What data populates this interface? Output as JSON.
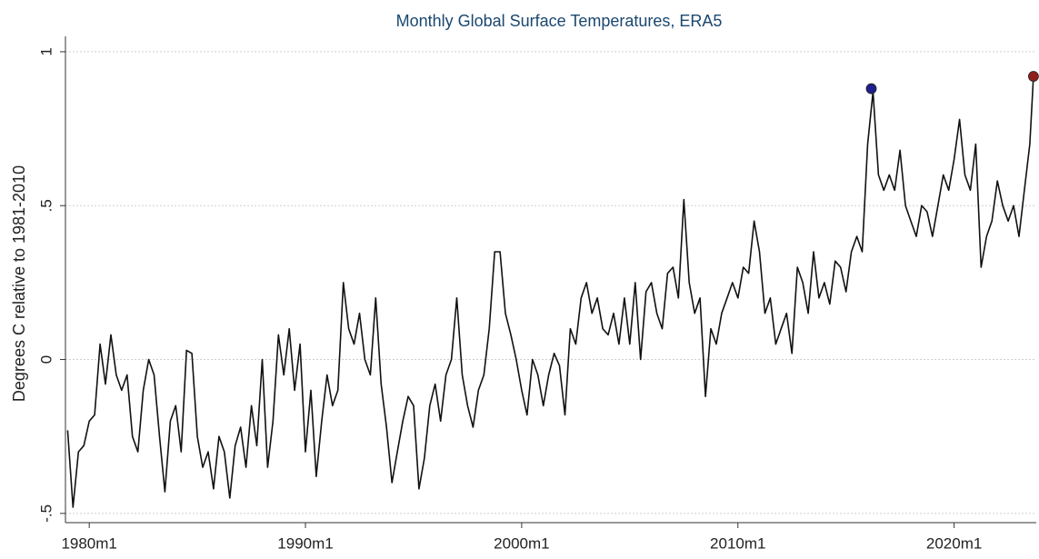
{
  "chart_data": {
    "type": "line",
    "title": "Monthly Global Surface Temperatures, ERA5",
    "y_label": "Degrees C relative to 1981-2010",
    "color": "#111111",
    "grid": true,
    "x": [
      1979,
      1979.25,
      1979.5,
      1979.75,
      1980,
      1980.25,
      1980.5,
      1980.75,
      1981,
      1981.25,
      1981.5,
      1981.75,
      1982,
      1982.25,
      1982.5,
      1982.75,
      1983,
      1983.25,
      1983.5,
      1983.75,
      1984,
      1984.25,
      1984.5,
      1984.75,
      1985,
      1985.25,
      1985.5,
      1985.75,
      1986,
      1986.25,
      1986.5,
      1986.75,
      1987,
      1987.25,
      1987.5,
      1987.75,
      1988,
      1988.25,
      1988.5,
      1988.75,
      1989,
      1989.25,
      1989.5,
      1989.75,
      1990,
      1990.25,
      1990.5,
      1990.75,
      1991,
      1991.25,
      1991.5,
      1991.75,
      1992,
      1992.25,
      1992.5,
      1992.75,
      1993,
      1993.25,
      1993.5,
      1993.75,
      1994,
      1994.25,
      1994.5,
      1994.75,
      1995,
      1995.25,
      1995.5,
      1995.75,
      1996,
      1996.25,
      1996.5,
      1996.75,
      1997,
      1997.25,
      1997.5,
      1997.75,
      1998,
      1998.25,
      1998.5,
      1998.75,
      1999,
      1999.25,
      1999.5,
      1999.75,
      2000,
      2000.25,
      2000.5,
      2000.75,
      2001,
      2001.25,
      2001.5,
      2001.75,
      2002,
      2002.25,
      2002.5,
      2002.75,
      2003,
      2003.25,
      2003.5,
      2003.75,
      2004,
      2004.25,
      2004.5,
      2004.75,
      2005,
      2005.25,
      2005.5,
      2005.75,
      2006,
      2006.25,
      2006.5,
      2006.75,
      2007,
      2007.25,
      2007.5,
      2007.75,
      2008,
      2008.25,
      2008.5,
      2008.75,
      2009,
      2009.25,
      2009.5,
      2009.75,
      2010,
      2010.25,
      2010.5,
      2010.75,
      2011,
      2011.25,
      2011.5,
      2011.75,
      2012,
      2012.25,
      2012.5,
      2012.75,
      2013,
      2013.25,
      2013.5,
      2013.75,
      2014,
      2014.25,
      2014.5,
      2014.75,
      2015,
      2015.25,
      2015.5,
      2015.75,
      2016,
      2016.25,
      2016.5,
      2016.75,
      2017,
      2017.25,
      2017.5,
      2017.75,
      2018,
      2018.25,
      2018.5,
      2018.75,
      2019,
      2019.25,
      2019.5,
      2019.75,
      2020,
      2020.25,
      2020.5,
      2020.75,
      2021,
      2021.25,
      2021.5,
      2021.75,
      2022,
      2022.25,
      2022.5,
      2022.75,
      2023,
      2023.25,
      2023.5,
      2023.67
    ],
    "values": [
      -0.23,
      -0.48,
      -0.3,
      -0.28,
      -0.2,
      -0.18,
      0.05,
      -0.08,
      0.08,
      -0.05,
      -0.1,
      -0.05,
      -0.25,
      -0.3,
      -0.1,
      0.0,
      -0.05,
      -0.25,
      -0.43,
      -0.2,
      -0.15,
      -0.3,
      0.03,
      0.02,
      -0.25,
      -0.35,
      -0.3,
      -0.42,
      -0.25,
      -0.3,
      -0.45,
      -0.28,
      -0.22,
      -0.35,
      -0.15,
      -0.28,
      0.0,
      -0.35,
      -0.2,
      0.08,
      -0.05,
      0.1,
      -0.1,
      0.05,
      -0.3,
      -0.1,
      -0.38,
      -0.2,
      -0.05,
      -0.15,
      -0.1,
      0.25,
      0.1,
      0.05,
      0.15,
      0.0,
      -0.05,
      0.2,
      -0.08,
      -0.22,
      -0.4,
      -0.3,
      -0.2,
      -0.12,
      -0.15,
      -0.42,
      -0.32,
      -0.15,
      -0.08,
      -0.2,
      -0.05,
      0.0,
      0.2,
      -0.05,
      -0.15,
      -0.22,
      -0.1,
      -0.05,
      0.1,
      0.35,
      0.35,
      0.15,
      0.08,
      0.0,
      -0.1,
      -0.18,
      0.0,
      -0.05,
      -0.15,
      -0.05,
      0.02,
      -0.02,
      -0.18,
      0.1,
      0.05,
      0.2,
      0.25,
      0.15,
      0.2,
      0.1,
      0.08,
      0.15,
      0.05,
      0.2,
      0.05,
      0.25,
      0.0,
      0.22,
      0.25,
      0.15,
      0.1,
      0.28,
      0.3,
      0.2,
      0.52,
      0.25,
      0.15,
      0.2,
      -0.12,
      0.1,
      0.05,
      0.15,
      0.2,
      0.25,
      0.2,
      0.3,
      0.28,
      0.45,
      0.35,
      0.15,
      0.2,
      0.05,
      0.1,
      0.15,
      0.02,
      0.3,
      0.25,
      0.15,
      0.35,
      0.2,
      0.25,
      0.18,
      0.32,
      0.3,
      0.22,
      0.35,
      0.4,
      0.35,
      0.7,
      0.87,
      0.6,
      0.55,
      0.6,
      0.55,
      0.68,
      0.5,
      0.45,
      0.4,
      0.5,
      0.48,
      0.4,
      0.5,
      0.6,
      0.55,
      0.65,
      0.78,
      0.6,
      0.55,
      0.7,
      0.3,
      0.4,
      0.45,
      0.58,
      0.5,
      0.45,
      0.5,
      0.4,
      0.55,
      0.7,
      0.92
    ],
    "markers": [
      {
        "x": 2016.17,
        "value": 0.88,
        "color": "#1f1f8f"
      },
      {
        "x": 2023.67,
        "value": 0.92,
        "color": "#8f1f1f"
      }
    ],
    "xlim": [
      1978.9,
      2023.8
    ],
    "xticks": [
      {
        "value": 1980,
        "label": "1980m1"
      },
      {
        "value": 1990,
        "label": "1990m1"
      },
      {
        "value": 2000,
        "label": "2000m1"
      },
      {
        "value": 2010,
        "label": "2010m1"
      },
      {
        "value": 2020,
        "label": "2020m1"
      }
    ],
    "ylim": [
      -0.53,
      1.05
    ],
    "yticks": [
      {
        "value": -0.5,
        "label": "-.5"
      },
      0,
      {
        "value": 0.5,
        "label": ".5"
      },
      1
    ]
  }
}
